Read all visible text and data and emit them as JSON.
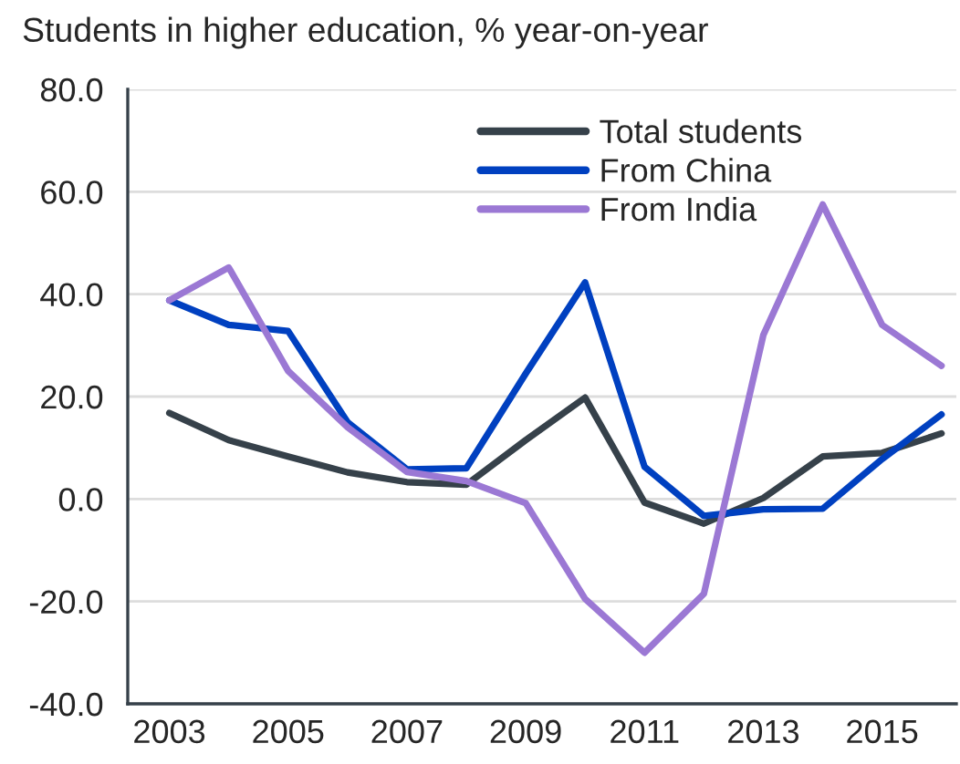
{
  "chart_data": {
    "type": "line",
    "title": "Students in higher education, % year-on-year",
    "categories": [
      "2003",
      null,
      "2005",
      null,
      "2007",
      null,
      "2009",
      null,
      "2011",
      null,
      "2013",
      null,
      "2015",
      null
    ],
    "series": [
      {
        "name": "Total students",
        "color": "#36414a",
        "values": [
          16.8,
          11.5,
          8.3,
          5.2,
          3.3,
          2.8,
          11.5,
          19.8,
          -0.7,
          -4.8,
          0.2,
          8.3,
          9.0,
          12.8
        ]
      },
      {
        "name": "From China",
        "color": "#0040c0",
        "values": [
          38.8,
          34.0,
          32.8,
          15.0,
          5.8,
          6.0,
          24.5,
          42.3,
          6.3,
          -3.3,
          -2.0,
          -1.9,
          7.8,
          16.5
        ]
      },
      {
        "name": "From India",
        "color": "#9b78d4",
        "values": [
          38.8,
          45.2,
          25.0,
          14.0,
          5.3,
          3.5,
          -0.8,
          -19.5,
          -30.0,
          -18.5,
          32.0,
          57.5,
          34.0,
          26.0
        ]
      }
    ],
    "ylim": [
      -40,
      80
    ],
    "yticks": [
      {
        "value": -40,
        "label": "-40.0"
      },
      {
        "value": -20,
        "label": "-20.0"
      },
      {
        "value": 0,
        "label": "0.0"
      },
      {
        "value": 20,
        "label": "20.0"
      },
      {
        "value": 40,
        "label": "40.0"
      },
      {
        "value": 60,
        "label": "60.0"
      },
      {
        "value": 80,
        "label": "80.0"
      }
    ],
    "grid": "y",
    "legend": "top",
    "marker": "none",
    "line_style": "solid"
  }
}
